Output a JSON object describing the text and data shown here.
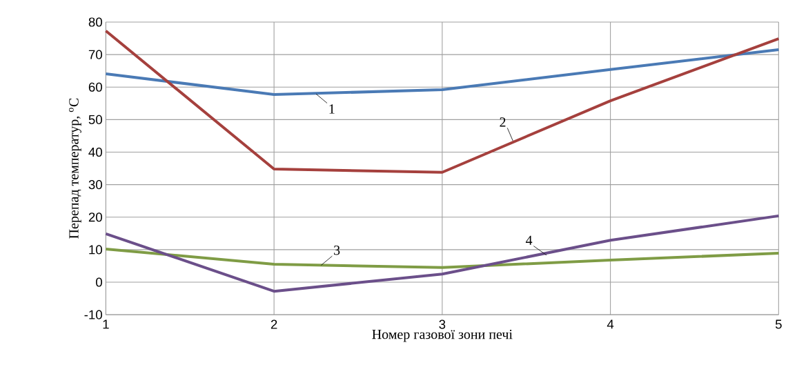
{
  "chart_data": {
    "type": "line",
    "xlabel": "Номер газової зони печі",
    "ylabel": "Перепад температур, $^{o}$C",
    "x": [
      1,
      2,
      3,
      4,
      5
    ],
    "series": [
      {
        "color": "#4a7ab5",
        "values": [
          64.1,
          57.7,
          59.2,
          65.4,
          71.5
        ]
      },
      {
        "color": "#a5403d",
        "values": [
          77.3,
          34.8,
          33.8,
          55.8,
          74.9
        ]
      },
      {
        "color": "#7f9c45",
        "values": [
          10.2,
          5.5,
          4.5,
          6.8,
          8.9
        ]
      },
      {
        "color": "#6b4f8a",
        "values": [
          14.9,
          -2.8,
          2.5,
          12.9,
          20.4
        ]
      }
    ],
    "annotations": [
      {
        "text": "1",
        "x": 2.25,
        "y": 57.9
      },
      {
        "text": "2",
        "x": 3.42,
        "y": 43.5
      },
      {
        "text": "3",
        "x": 2.28,
        "y": 5.2
      },
      {
        "text": "4",
        "x": 3.62,
        "y": 8.3
      }
    ],
    "xlim": [
      1,
      5
    ],
    "xticks": [
      1,
      2,
      3,
      4,
      5
    ],
    "ylim": [
      -10,
      80
    ],
    "yticks": [
      -10,
      0,
      10,
      20,
      30,
      40,
      50,
      60,
      70,
      80
    ],
    "grid": true,
    "marker": "none",
    "line_style": "solid"
  }
}
